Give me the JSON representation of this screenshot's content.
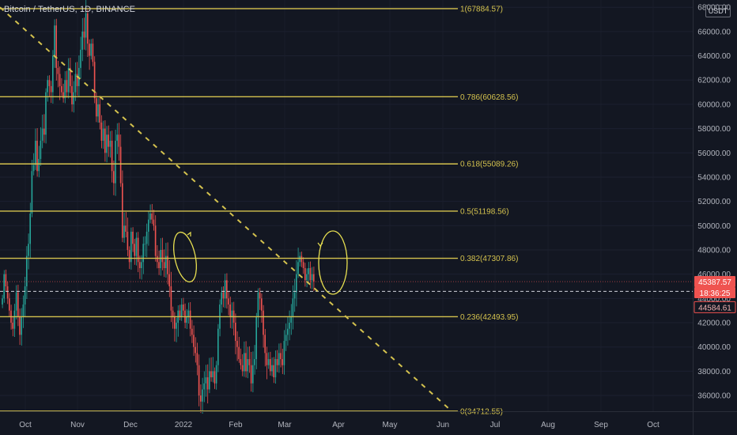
{
  "header": {
    "symbol_title": "Bitcoin / TetherUS, 1D, BINANCE",
    "currency_badge": "USDT"
  },
  "colors": {
    "background": "#131722",
    "fib_line": "#d4c24e",
    "fib_label": "#d4c24e",
    "up_candle": "#26a69a",
    "down_candle": "#ef5350",
    "axis_text": "#b2b5be",
    "trendline": "#d4c24e",
    "price_tag": "#ef5350",
    "dashed_price_line": "#d1d4dc"
  },
  "chart_data": {
    "type": "candlestick",
    "title": "Bitcoin / TetherUS, 1D, BINANCE",
    "x_labels": [
      "Oct",
      "Nov",
      "Dec",
      "2022",
      "Feb",
      "Mar",
      "Apr",
      "May",
      "Jun",
      "Jul",
      "Aug",
      "Sep",
      "Oct"
    ],
    "y_ticks": [
      36000,
      38000,
      40000,
      42000,
      44000,
      46000,
      48000,
      50000,
      52000,
      54000,
      56000,
      58000,
      60000,
      62000,
      64000,
      66000,
      68000
    ],
    "ylim": [
      34700,
      68600
    ],
    "fib_levels": [
      {
        "label": "1(67884.57)",
        "value": 67884.57
      },
      {
        "label": "0.786(60628.56)",
        "value": 60628.56
      },
      {
        "label": "0.618(55089.26)",
        "value": 55089.26
      },
      {
        "label": "0.5(51198.56)",
        "value": 51198.56
      },
      {
        "label": "0.382(47307.86)",
        "value": 47307.86
      },
      {
        "label": "0.236(42493.95)",
        "value": 42493.95
      },
      {
        "label": "0(34712.55)",
        "value": 34712.55
      }
    ],
    "price_labels": [
      {
        "text": "45387.57",
        "value": 45387.57,
        "style": "filled"
      },
      {
        "text": "18:36:25",
        "value": 44850,
        "style": "filled"
      },
      {
        "text": "44584.61",
        "value": 44584.61,
        "style": "outline"
      }
    ],
    "dashed_line_value": 44584.61,
    "trendline": {
      "start": [
        "Sep 20",
        68000
      ],
      "end": [
        "Jun 10",
        34900
      ]
    },
    "closes": [
      44000,
      46000,
      45000,
      44000,
      43000,
      42000,
      41500,
      43000,
      44500,
      42500,
      41000,
      42500,
      43500,
      45000,
      47500,
      48500,
      51000,
      54500,
      55000,
      57000,
      54500,
      55500,
      57000,
      58000,
      57500,
      61000,
      62000,
      61500,
      61000,
      64000,
      66500,
      63000,
      62500,
      61500,
      61000,
      60500,
      62000,
      61000,
      63000,
      61500,
      60000,
      61000,
      62500,
      61500,
      63000,
      64500,
      66000,
      65500,
      67500,
      65000,
      64000,
      65000,
      63500,
      60500,
      59000,
      60000,
      58500,
      57000,
      58000,
      56000,
      57500,
      56500,
      57000,
      54500,
      53500,
      57000,
      57500,
      56500,
      53500,
      49000,
      50000,
      49500,
      48000,
      47000,
      49500,
      48500,
      47500,
      49000,
      47000,
      46500,
      47000,
      48500,
      48500,
      49500,
      50500,
      51000,
      50500,
      50000,
      47500,
      47000,
      46500,
      48000,
      47000,
      46500,
      47500,
      46000,
      45000,
      43000,
      42500,
      41500,
      42000,
      43000,
      42500,
      43500,
      43000,
      42000,
      42500,
      43000,
      41500,
      41000,
      40000,
      39500,
      38500,
      36000,
      35500,
      36500,
      37000,
      37500,
      36500,
      38000,
      37500,
      38000,
      37000,
      38500,
      41500,
      43500,
      44500,
      44000,
      45500,
      44000,
      43500,
      42500,
      43000,
      42000,
      40500,
      40000,
      39000,
      38500,
      38000,
      39500,
      38000,
      39000,
      38500,
      37000,
      38500,
      39000,
      42500,
      44500,
      44000,
      43000,
      41000,
      39500,
      38500,
      39000,
      38000,
      38500,
      37500,
      39000,
      38500,
      39500,
      39000,
      38500,
      40500,
      41000,
      41500,
      42000,
      42500,
      44000,
      44500,
      46000,
      47000,
      47500,
      47000,
      46500,
      45500,
      46000,
      46500,
      45500,
      46000,
      45387.57
    ]
  }
}
